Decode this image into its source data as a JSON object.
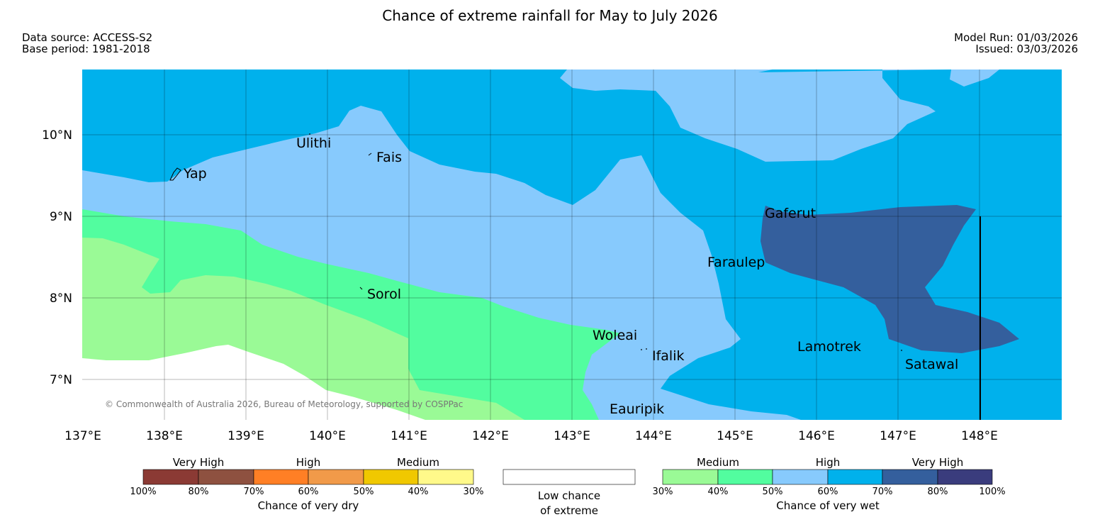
{
  "header": {
    "title": "Chance of extreme rainfall for May to July 2026",
    "data_source": "Data source: ACCESS-S2",
    "base_period": "Base period: 1981-2018",
    "model_run": "Model Run: 01/03/2026",
    "issued": "Issued: 03/03/2026"
  },
  "map": {
    "lon_labels": [
      "137°E",
      "138°E",
      "139°E",
      "140°E",
      "141°E",
      "142°E",
      "143°E",
      "144°E",
      "145°E",
      "146°E",
      "147°E",
      "148°E"
    ],
    "lat_labels": [
      "10°N",
      "9°N",
      "8°N",
      "7°N"
    ],
    "places": [
      "Ulithi",
      "Fais",
      "Yap",
      "Gaferut",
      "Faraulep",
      "Sorol",
      "Woleai",
      "Ifalik",
      "Lamotrek",
      "Satawal",
      "Eauripik"
    ],
    "copyright": "© Commonwealth of Australia 2026, Bureau of Meteorology, supported by COSPPac",
    "colors": {
      "wet_30_40": "#9afa96",
      "wet_40_50": "#52fd9f",
      "wet_50_60": "#87cafd",
      "wet_60_70": "#00b1ec",
      "wet_70_80": "#345f9d",
      "wet_80_100": "#3a3c7d",
      "low": "#ffffff"
    }
  },
  "legend": {
    "dry": {
      "categories": [
        "Very High",
        "High",
        "Medium"
      ],
      "ticks": [
        "100%",
        "80%",
        "70%",
        "60%",
        "50%",
        "40%",
        "30%"
      ],
      "colors": [
        "#8b3a34",
        "#8e5140",
        "#ff7f25",
        "#f19a49",
        "#f0c800",
        "#fff98a"
      ],
      "caption": "Chance of very dry"
    },
    "low": {
      "caption_line1": "Low chance",
      "caption_line2": "of extreme"
    },
    "wet": {
      "categories": [
        "Medium",
        "High",
        "Very High"
      ],
      "ticks": [
        "30%",
        "40%",
        "50%",
        "60%",
        "70%",
        "80%",
        "100%"
      ],
      "colors": [
        "#9afa96",
        "#52fd9f",
        "#87cafd",
        "#00b1ec",
        "#345f9d",
        "#3a3c7d"
      ],
      "caption": "Chance of very wet"
    }
  }
}
